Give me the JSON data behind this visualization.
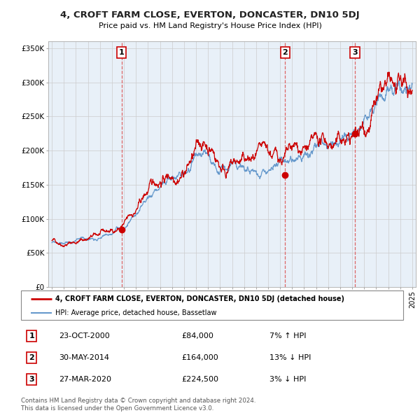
{
  "title": "4, CROFT FARM CLOSE, EVERTON, DONCASTER, DN10 5DJ",
  "subtitle": "Price paid vs. HM Land Registry's House Price Index (HPI)",
  "ylabel_ticks": [
    "£0",
    "£50K",
    "£100K",
    "£150K",
    "£200K",
    "£250K",
    "£300K",
    "£350K"
  ],
  "ytick_values": [
    0,
    50000,
    100000,
    150000,
    200000,
    250000,
    300000,
    350000
  ],
  "ylim": [
    0,
    360000
  ],
  "xlim_start": 1994.7,
  "xlim_end": 2025.3,
  "transactions": [
    {
      "num": 1,
      "date_num": 2000.81,
      "price": 84000,
      "date_str": "23-OCT-2000",
      "label": "£84,000",
      "rel": "7% ↑ HPI"
    },
    {
      "num": 2,
      "date_num": 2014.41,
      "price": 164000,
      "date_str": "30-MAY-2014",
      "label": "£164,000",
      "rel": "13% ↓ HPI"
    },
    {
      "num": 3,
      "date_num": 2020.23,
      "price": 224500,
      "date_str": "27-MAR-2020",
      "label": "£224,500",
      "rel": "3% ↓ HPI"
    }
  ],
  "red_line_color": "#cc0000",
  "blue_line_color": "#6699cc",
  "vline_color": "#dd6666",
  "box_edge_color": "#cc0000",
  "legend_box_color": "#cc0000",
  "chart_bg_color": "#e8f0f8",
  "background_color": "#ffffff",
  "grid_color": "#cccccc",
  "footer_text": "Contains HM Land Registry data © Crown copyright and database right 2024.\nThis data is licensed under the Open Government Licence v3.0.",
  "legend_entry1": "4, CROFT FARM CLOSE, EVERTON, DONCASTER, DN10 5DJ (detached house)",
  "legend_entry2": "HPI: Average price, detached house, Bassetlaw",
  "hpi_key_points": [
    [
      1995.0,
      65000
    ],
    [
      1996.0,
      64000
    ],
    [
      1997.0,
      66000
    ],
    [
      1998.0,
      70000
    ],
    [
      1999.0,
      74000
    ],
    [
      2000.0,
      78000
    ],
    [
      2001.0,
      86000
    ],
    [
      2002.0,
      105000
    ],
    [
      2003.0,
      130000
    ],
    [
      2004.0,
      148000
    ],
    [
      2005.0,
      155000
    ],
    [
      2006.0,
      167000
    ],
    [
      2007.0,
      185000
    ],
    [
      2007.8,
      190000
    ],
    [
      2008.5,
      182000
    ],
    [
      2009.0,
      170000
    ],
    [
      2009.5,
      168000
    ],
    [
      2010.0,
      173000
    ],
    [
      2011.0,
      172000
    ],
    [
      2012.0,
      170000
    ],
    [
      2013.0,
      172000
    ],
    [
      2014.0,
      175000
    ],
    [
      2015.0,
      185000
    ],
    [
      2016.0,
      193000
    ],
    [
      2017.0,
      200000
    ],
    [
      2018.0,
      208000
    ],
    [
      2019.0,
      212000
    ],
    [
      2020.0,
      218000
    ],
    [
      2021.0,
      238000
    ],
    [
      2022.0,
      268000
    ],
    [
      2023.0,
      285000
    ],
    [
      2024.0,
      292000
    ],
    [
      2025.0,
      298000
    ]
  ],
  "red_key_points": [
    [
      1995.0,
      68000
    ],
    [
      1996.0,
      66000
    ],
    [
      1997.0,
      68000
    ],
    [
      1998.0,
      72000
    ],
    [
      1999.0,
      76000
    ],
    [
      2000.0,
      80000
    ],
    [
      2001.0,
      90000
    ],
    [
      2002.0,
      110000
    ],
    [
      2003.0,
      138000
    ],
    [
      2004.0,
      158000
    ],
    [
      2005.0,
      168000
    ],
    [
      2006.0,
      178000
    ],
    [
      2007.0,
      198000
    ],
    [
      2007.5,
      210000
    ],
    [
      2008.3,
      205000
    ],
    [
      2009.0,
      182000
    ],
    [
      2009.5,
      178000
    ],
    [
      2010.0,
      180000
    ],
    [
      2011.0,
      180000
    ],
    [
      2012.0,
      178000
    ],
    [
      2013.0,
      180000
    ],
    [
      2014.0,
      182000
    ],
    [
      2015.0,
      188000
    ],
    [
      2016.0,
      194000
    ],
    [
      2017.0,
      198000
    ],
    [
      2018.0,
      205000
    ],
    [
      2019.0,
      210000
    ],
    [
      2020.0,
      215000
    ],
    [
      2021.0,
      235000
    ],
    [
      2022.0,
      270000
    ],
    [
      2023.0,
      275000
    ],
    [
      2024.0,
      268000
    ],
    [
      2025.0,
      275000
    ]
  ]
}
